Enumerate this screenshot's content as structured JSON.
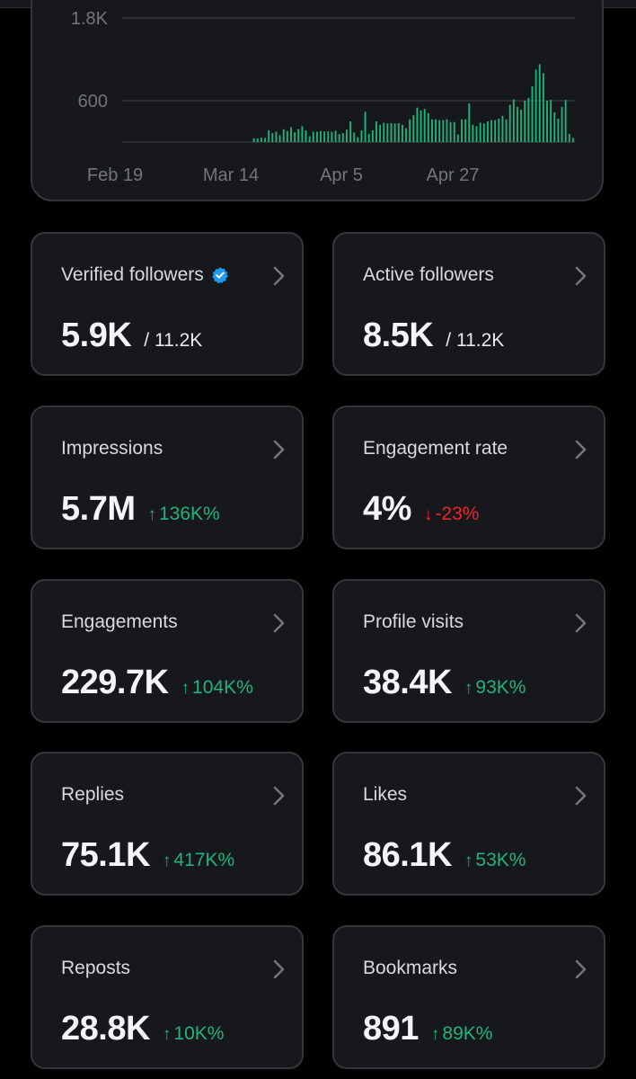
{
  "colors": {
    "background": "#000000",
    "card_background": "#16181c",
    "card_border": "#33373c",
    "bar": "#1fb47c",
    "positive": "#1fb47c",
    "negative": "#f4212e",
    "verified": "#1d9bf0"
  },
  "chart_data": {
    "type": "bar",
    "y_ticks": [
      "1.8K",
      "600"
    ],
    "x_ticks": [
      "Feb 19",
      "Mar 14",
      "Apr 5",
      "Apr 27"
    ],
    "ylim": [
      0,
      1800
    ],
    "grid": true,
    "values": [
      0,
      0,
      0,
      0,
      0,
      0,
      0,
      0,
      0,
      0,
      0,
      0,
      0,
      0,
      0,
      0,
      0,
      0,
      0,
      0,
      0,
      0,
      0,
      0,
      0,
      0,
      0,
      0,
      0,
      0,
      0,
      0,
      0,
      0,
      0,
      55,
      55,
      65,
      60,
      170,
      130,
      150,
      100,
      185,
      160,
      215,
      140,
      190,
      230,
      170,
      85,
      150,
      150,
      160,
      155,
      155,
      150,
      165,
      115,
      130,
      180,
      300,
      140,
      70,
      170,
      440,
      120,
      170,
      300,
      250,
      280,
      270,
      275,
      270,
      275,
      250,
      200,
      330,
      390,
      500,
      460,
      480,
      420,
      330,
      330,
      320,
      320,
      330,
      290,
      290,
      110,
      330,
      330,
      560,
      250,
      230,
      280,
      270,
      300,
      320,
      320,
      340,
      380,
      330,
      540,
      620,
      510,
      470,
      600,
      640,
      810,
      1050,
      1130,
      1000,
      600,
      610,
      430,
      340,
      510,
      610,
      120,
      60
    ],
    "bar_start_index": 0
  },
  "cards": [
    {
      "title": "Verified followers",
      "verified": true,
      "value": "5.9K",
      "sub": "/ 11.2K",
      "change": "",
      "direction": ""
    },
    {
      "title": "Active followers",
      "verified": false,
      "value": "8.5K",
      "sub": "/ 11.2K",
      "change": "",
      "direction": ""
    },
    {
      "title": "Impressions",
      "verified": false,
      "value": "5.7M",
      "sub": "",
      "change": "136K%",
      "direction": "up"
    },
    {
      "title": "Engagement rate",
      "verified": false,
      "value": "4%",
      "sub": "",
      "change": "-23%",
      "direction": "down"
    },
    {
      "title": "Engagements",
      "verified": false,
      "value": "229.7K",
      "sub": "",
      "change": "104K%",
      "direction": "up"
    },
    {
      "title": "Profile visits",
      "verified": false,
      "value": "38.4K",
      "sub": "",
      "change": "93K%",
      "direction": "up"
    },
    {
      "title": "Replies",
      "verified": false,
      "value": "75.1K",
      "sub": "",
      "change": "417K%",
      "direction": "up"
    },
    {
      "title": "Likes",
      "verified": false,
      "value": "86.1K",
      "sub": "",
      "change": "53K%",
      "direction": "up"
    },
    {
      "title": "Reposts",
      "verified": false,
      "value": "28.8K",
      "sub": "",
      "change": "10K%",
      "direction": "up"
    },
    {
      "title": "Bookmarks",
      "verified": false,
      "value": "891",
      "sub": "",
      "change": "89K%",
      "direction": "up"
    }
  ]
}
